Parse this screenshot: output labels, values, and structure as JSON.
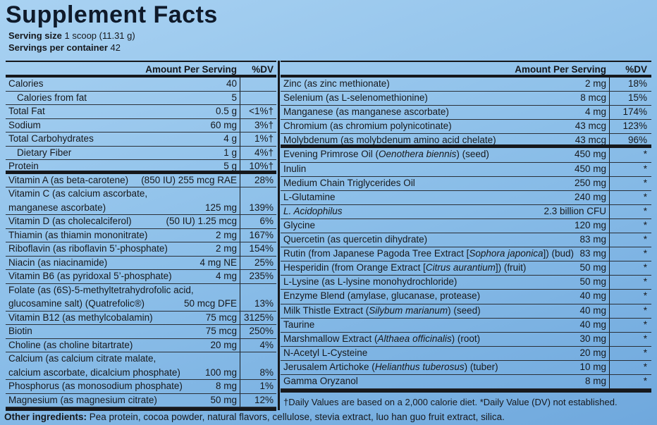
{
  "header": {
    "title": "Supplement Facts",
    "serving_size_label": "Serving size",
    "serving_size": "1 scoop (11.31 g)",
    "servings_label": "Servings per container",
    "servings": "42"
  },
  "left_table": {
    "col_amount": "Amount Per Serving",
    "col_dv": "%DV",
    "rows": [
      {
        "name_lines": [
          "Calories"
        ],
        "amount": "40",
        "dv": ""
      },
      {
        "name_lines": [
          "Calories from fat"
        ],
        "amount": "5",
        "dv": "",
        "indent": true
      },
      {
        "name_lines": [
          "Total Fat"
        ],
        "amount": "0.5 g",
        "dv": "<1%†"
      },
      {
        "name_lines": [
          "Sodium"
        ],
        "amount": "60 mg",
        "dv": "3%†"
      },
      {
        "name_lines": [
          "Total Carbohydrates"
        ],
        "amount": "4 g",
        "dv": "1%†"
      },
      {
        "name_lines": [
          "Dietary Fiber"
        ],
        "amount": "1 g",
        "dv": "4%†",
        "indent": true
      },
      {
        "name_lines": [
          "Protein"
        ],
        "amount": "5 g",
        "dv": "10%†",
        "divider": "thick"
      },
      {
        "name_lines": [
          "Vitamin A (as beta-carotene)"
        ],
        "amount": "(850 IU) 255 mcg RAE",
        "dv": "28%"
      },
      {
        "name_lines": [
          "Vitamin C (as calcium ascorbate,",
          "manganese ascorbate)"
        ],
        "amount": "125 mg",
        "dv": "139%"
      },
      {
        "name_lines": [
          "Vitamin D (as cholecalciferol)"
        ],
        "amount": "(50 IU) 1.25 mcg",
        "dv": "6%"
      },
      {
        "name_lines": [
          "Thiamin (as thiamin mononitrate)"
        ],
        "amount": "2 mg",
        "dv": "167%"
      },
      {
        "name_lines": [
          "Riboflavin (as riboflavin 5’-phosphate)"
        ],
        "amount": "2 mg",
        "dv": "154%"
      },
      {
        "name_lines": [
          "Niacin (as niacinamide)"
        ],
        "amount": "4 mg NE",
        "dv": "25%"
      },
      {
        "name_lines": [
          "Vitamin B6 (as pyridoxal 5’-phosphate)"
        ],
        "amount": "4 mg",
        "dv": "235%"
      },
      {
        "name_lines": [
          "Folate (as (6S)-5-methyltetrahydrofolic acid,",
          "glucosamine salt) (Quatrefolic®)"
        ],
        "amount": "50 mcg DFE",
        "dv": "13%"
      },
      {
        "name_lines": [
          "Vitamin B12 (as methylcobalamin)"
        ],
        "amount": "75 mcg",
        "dv": "3125%"
      },
      {
        "name_lines": [
          "Biotin"
        ],
        "amount": "75 mcg",
        "dv": "250%"
      },
      {
        "name_lines": [
          "Choline (as choline bitartrate)"
        ],
        "amount": "20 mg",
        "dv": "4%"
      },
      {
        "name_lines": [
          "Calcium (as calcium citrate malate,",
          "calcium ascorbate, dicalcium phosphate)"
        ],
        "amount": "100 mg",
        "dv": "8%"
      },
      {
        "name_lines": [
          "Phosphorus (as monosodium phosphate)"
        ],
        "amount": "8 mg",
        "dv": "1%"
      },
      {
        "name_lines": [
          "Magnesium (as magnesium citrate)"
        ],
        "amount": "50 mg",
        "dv": "12%"
      }
    ]
  },
  "right_table": {
    "col_amount": "Amount Per Serving",
    "col_dv": "%DV",
    "rows": [
      {
        "name_parts": [
          "Zinc (as zinc methionate)"
        ],
        "amount": "2 mg",
        "dv": "18%"
      },
      {
        "name_parts": [
          "Selenium (as L-selenomethionine)"
        ],
        "amount": "8 mcg",
        "dv": "15%"
      },
      {
        "name_parts": [
          "Manganese (as manganese ascorbate)"
        ],
        "amount": "4 mg",
        "dv": "174%"
      },
      {
        "name_parts": [
          "Chromium (as chromium polynicotinate)"
        ],
        "amount": "43 mcg",
        "dv": "123%"
      },
      {
        "name_parts": [
          "Molybdenum (as molybdenum amino acid chelate)"
        ],
        "amount": "43 mcg",
        "dv": "96%",
        "divider": "thick"
      },
      {
        "name_parts": [
          "Evening Primrose Oil (",
          {
            "text": "Oenothera biennis",
            "italic": true
          },
          ") (seed)"
        ],
        "amount": "450 mg",
        "dv": "*"
      },
      {
        "name_parts": [
          "Inulin"
        ],
        "amount": "450 mg",
        "dv": "*"
      },
      {
        "name_parts": [
          "Medium Chain Triglycerides Oil"
        ],
        "amount": "250 mg",
        "dv": "*"
      },
      {
        "name_parts": [
          "L-Glutamine"
        ],
        "amount": "240 mg",
        "dv": "*"
      },
      {
        "name_parts": [
          {
            "text": "L. Acidophilus",
            "italic": true
          }
        ],
        "amount": "2.3 billion CFU",
        "dv": "*"
      },
      {
        "name_parts": [
          "Glycine"
        ],
        "amount": "120 mg",
        "dv": "*"
      },
      {
        "name_parts": [
          "Quercetin (as quercetin dihydrate)"
        ],
        "amount": "83 mg",
        "dv": "*"
      },
      {
        "name_parts": [
          "Rutin (from Japanese Pagoda Tree Extract [",
          {
            "text": "Sophora japonica",
            "italic": true
          },
          "]) (bud)"
        ],
        "amount": "83 mg",
        "dv": "*"
      },
      {
        "name_parts": [
          "Hesperidin (from Orange Extract [",
          {
            "text": "Citrus aurantium",
            "italic": true
          },
          "]) (fruit)"
        ],
        "amount": "50 mg",
        "dv": "*"
      },
      {
        "name_parts": [
          "L-Lysine (as L-lysine monohydrochloride)"
        ],
        "amount": "50 mg",
        "dv": "*"
      },
      {
        "name_parts": [
          "Enzyme Blend (amylase, glucanase, protease)"
        ],
        "amount": "40 mg",
        "dv": "*"
      },
      {
        "name_parts": [
          "Milk Thistle Extract (",
          {
            "text": "Silybum marianum",
            "italic": true
          },
          ") (seed)"
        ],
        "amount": "40 mg",
        "dv": "*"
      },
      {
        "name_parts": [
          "Taurine"
        ],
        "amount": "40 mg",
        "dv": "*"
      },
      {
        "name_parts": [
          "Marshmallow Extract (",
          {
            "text": "Althaea officinalis",
            "italic": true
          },
          ") (root)"
        ],
        "amount": "30 mg",
        "dv": "*"
      },
      {
        "name_parts": [
          "N-Acetyl L-Cysteine"
        ],
        "amount": "20 mg",
        "dv": "*"
      },
      {
        "name_parts": [
          "Jerusalem Artichoke (",
          {
            "text": "Helianthus tuberosus",
            "italic": true
          },
          ") (tuber)"
        ],
        "amount": "10 mg",
        "dv": "*"
      },
      {
        "name_parts": [
          "Gamma Oryzanol"
        ],
        "amount": "8 mg",
        "dv": "*"
      }
    ],
    "footnote": "†Daily Values are based on a 2,000 calorie diet. *Daily Value (DV) not established."
  },
  "other_ingredients": {
    "label": "Other ingredients:",
    "text": "Pea protein, cocoa powder, natural flavors, cellulose, stevia extract, luo han guo fruit extract, silica."
  }
}
